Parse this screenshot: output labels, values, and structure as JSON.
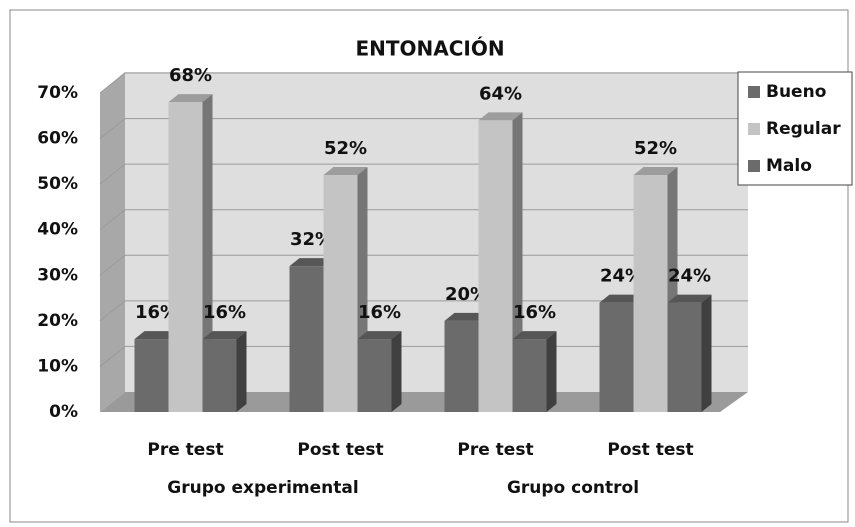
{
  "chart_data": {
    "type": "bar3d",
    "title": "ENTONACIÓN",
    "categories": [
      "Pre test",
      "Post test",
      "Pre test",
      "Post test"
    ],
    "group_labels": [
      "Grupo experimental",
      "Grupo control"
    ],
    "series": [
      {
        "name": "Bueno",
        "color": "#6b6b6b",
        "values": [
          16,
          32,
          20,
          24
        ],
        "value_labels": [
          "16%",
          "32%",
          "20%",
          "24%"
        ]
      },
      {
        "name": "Regular",
        "color": "#c4c4c4",
        "values": [
          68,
          52,
          64,
          52
        ],
        "value_labels": [
          "68%",
          "52%",
          "64%",
          "52%"
        ]
      },
      {
        "name": "Malo",
        "color": "#6b6b6b",
        "values": [
          16,
          16,
          16,
          24
        ],
        "value_labels": [
          "16%",
          "16%",
          "16%",
          "24%"
        ]
      }
    ],
    "ylim": [
      0,
      70
    ],
    "yticks": [
      {
        "value": 0,
        "label": "0%"
      },
      {
        "value": 10,
        "label": "10%"
      },
      {
        "value": 20,
        "label": "20%"
      },
      {
        "value": 30,
        "label": "30%"
      },
      {
        "value": 40,
        "label": "40%"
      },
      {
        "value": 50,
        "label": "50%"
      },
      {
        "value": 60,
        "label": "60%"
      },
      {
        "value": 70,
        "label": "70%"
      }
    ],
    "grid": true,
    "legend": "right"
  }
}
